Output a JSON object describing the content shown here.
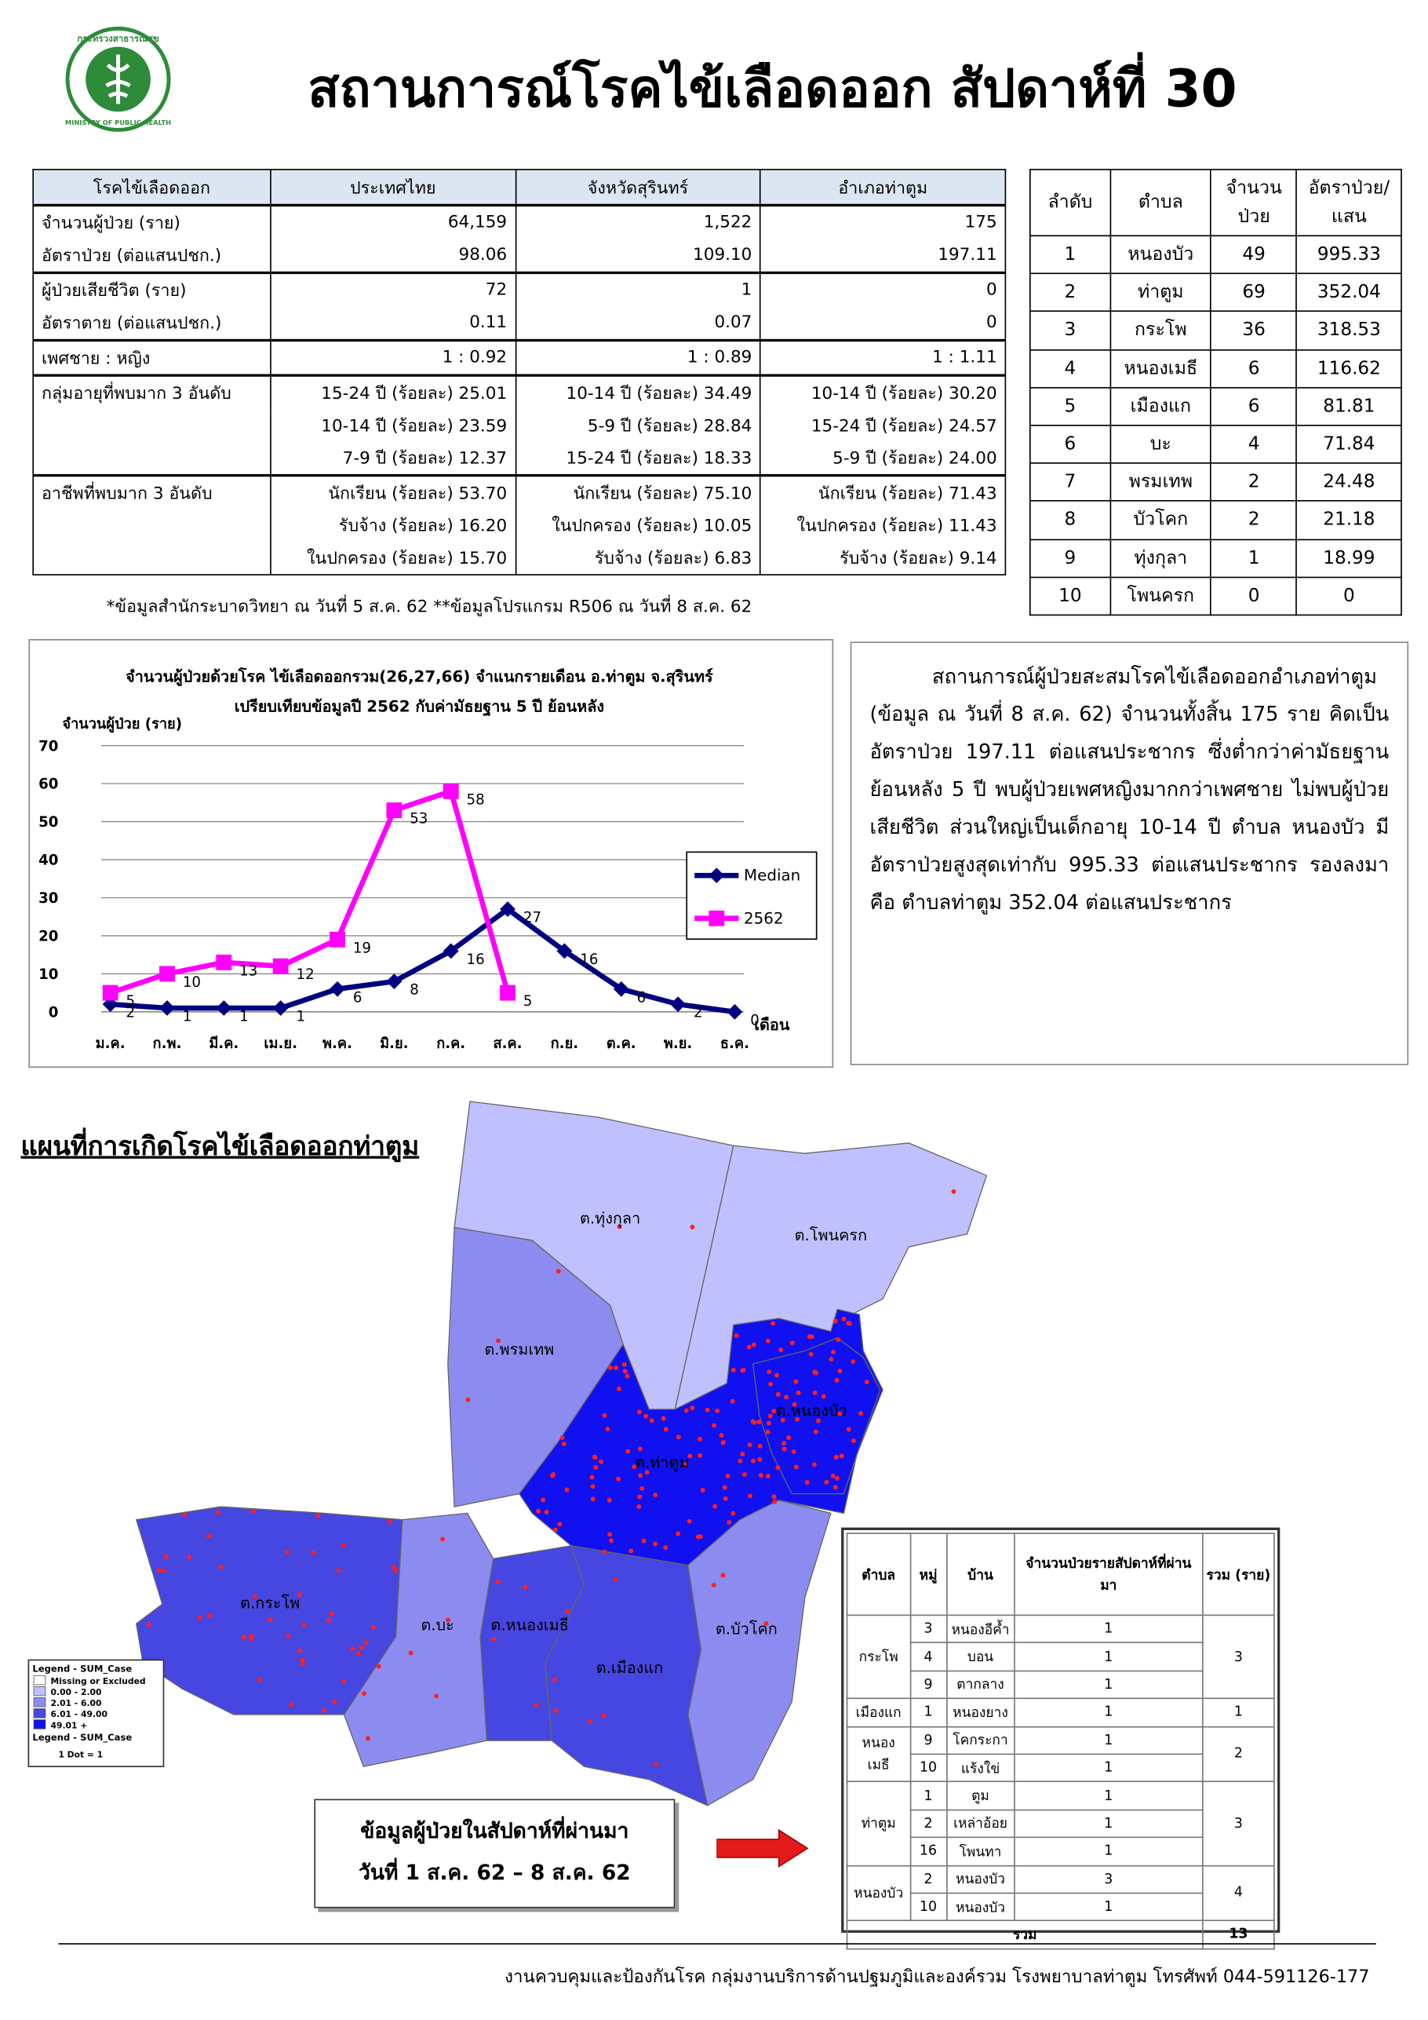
{
  "header": {
    "title": "สถานการณ์โรคไข้เลือดออก สัปดาห์ที่ 30",
    "logo_top": "กระทรวงสาธารณสุข",
    "logo_bottom": "MINISTRY OF PUBLIC HEALTH"
  },
  "summary_table": {
    "headers": [
      "โรคไข้เลือดออก",
      "ประเทศไทย",
      "จังหวัดสุรินทร์",
      "อำเภอท่าตูม"
    ],
    "groups": [
      {
        "labels": [
          "จำนวนผู้ป่วย (ราย)",
          "อัตราป่วย (ต่อแสนปชก.)"
        ],
        "rows": [
          [
            "64,159",
            "1,522",
            "175"
          ],
          [
            "98.06",
            "109.10",
            "197.11"
          ]
        ]
      },
      {
        "labels": [
          "ผู้ป่วยเสียชีวิต (ราย)",
          "อัตราตาย (ต่อแสนปชก.)"
        ],
        "rows": [
          [
            "72",
            "1",
            "0"
          ],
          [
            "0.11",
            "0.07",
            "0"
          ]
        ]
      },
      {
        "labels": [
          "เพศชาย : หญิง"
        ],
        "rows": [
          [
            "1 : 0.92",
            "1 : 0.89",
            "1 : 1.11"
          ]
        ]
      },
      {
        "labels": [
          "กลุ่มอายุที่พบมาก 3 อันดับ"
        ],
        "rows": [
          [
            "15-24 ปี (ร้อยละ) 25.01",
            "10-14 ปี (ร้อยละ) 34.49",
            "10-14 ปี (ร้อยละ) 30.20"
          ],
          [
            "10-14 ปี (ร้อยละ) 23.59",
            "5-9 ปี (ร้อยละ) 28.84",
            "15-24 ปี (ร้อยละ) 24.57"
          ],
          [
            "7-9 ปี (ร้อยละ) 12.37",
            "15-24 ปี (ร้อยละ) 18.33",
            "5-9 ปี (ร้อยละ) 24.00"
          ]
        ]
      },
      {
        "labels": [
          "อาชีพที่พบมาก 3 อันดับ"
        ],
        "rows": [
          [
            "นักเรียน (ร้อยละ) 53.70",
            "นักเรียน (ร้อยละ) 75.10",
            "นักเรียน (ร้อยละ) 71.43"
          ],
          [
            "รับจ้าง (ร้อยละ) 16.20",
            "ในปกครอง (ร้อยละ) 10.05",
            "ในปกครอง (ร้อยละ) 11.43"
          ],
          [
            "ในปกครอง (ร้อยละ) 15.70",
            "รับจ้าง (ร้อยละ) 6.83",
            "รับจ้าง (ร้อยละ) 9.14"
          ]
        ]
      }
    ],
    "footnote": "*ข้อมูลสำนักระบาดวิทยา ณ วันที่ 5 ส.ค. 62 **ข้อมูลโปรแกรม R506 ณ วันที่ 8 ส.ค. 62"
  },
  "rank_table": {
    "headers": [
      [
        "ลำดับ"
      ],
      [
        "ตำบล"
      ],
      [
        "จำนวน",
        "ป่วย"
      ],
      [
        "อัตราป่วย/",
        "แสน"
      ]
    ],
    "rows": [
      [
        "1",
        "หนองบัว",
        "49",
        "995.33"
      ],
      [
        "2",
        "ท่าตูม",
        "69",
        "352.04"
      ],
      [
        "3",
        "กระโพ",
        "36",
        "318.53"
      ],
      [
        "4",
        "หนองเมธี",
        "6",
        "116.62"
      ],
      [
        "5",
        "เมืองแก",
        "6",
        "81.81"
      ],
      [
        "6",
        "บะ",
        "4",
        "71.84"
      ],
      [
        "7",
        "พรมเทพ",
        "2",
        "24.48"
      ],
      [
        "8",
        "บัวโคก",
        "2",
        "21.18"
      ],
      [
        "9",
        "ทุ่งกุลา",
        "1",
        "18.99"
      ],
      [
        "10",
        "โพนครก",
        "0",
        "0"
      ]
    ]
  },
  "chart_data": {
    "type": "line",
    "title": [
      "จำนวนผู้ป่วยด้วยโรค ไข้เลือดออกรวม(26,27,66) จำแนกรายเดือน อ.ท่าตูม จ.สุรินทร์",
      "เปรียบเทียบข้อมูลปี 2562 กับค่ามัธยฐาน 5 ปี ย้อนหลัง"
    ],
    "y_label": "จำนวนผู้ป่วย (ราย)",
    "x_label": "เดือน",
    "categories": [
      "ม.ค.",
      "ก.พ.",
      "มี.ค.",
      "เม.ย.",
      "พ.ค.",
      "มิ.ย.",
      "ก.ค.",
      "ส.ค.",
      "ก.ย.",
      "ต.ค.",
      "พ.ย.",
      "ธ.ค."
    ],
    "series": [
      {
        "name": "Median",
        "color": "#000080",
        "marker": "diamond",
        "values": [
          2,
          1,
          1,
          1,
          6,
          8,
          16,
          27,
          16,
          6,
          2,
          0
        ]
      },
      {
        "name": "2562",
        "color": "#ff00ff",
        "marker": "square",
        "values": [
          5,
          10,
          13,
          12,
          19,
          53,
          58,
          5,
          null,
          null,
          null,
          null
        ]
      }
    ],
    "ylim": [
      0,
      70
    ],
    "yticks": [
      0,
      10,
      20,
      30,
      40,
      50,
      60,
      70
    ],
    "grid": true,
    "legend": "right"
  },
  "summary_text": "สถานการณ์ผู้ป่วยสะสมโรคไข้เลือดออกอำเภอท่าตูม (ข้อมูล ณ วันที่ 8 ส.ค. 62) จำนวนทั้งสิ้น 175 ราย คิดเป็นอัตราป่วย 197.11 ต่อแสนประชากร ซึ่งต่ำกว่าค่ามัธยฐานย้อนหลัง 5 ปี พบผู้ป่วยเพศหญิงมากกว่าเพศชาย ไม่พบผู้ป่วยเสียชีวิต ส่วนใหญ่เป็นเด็กอายุ 10-14 ปี ตำบล หนองบัว มีอัตราป่วยสูงสุดเท่ากับ 995.33 ต่อแสนประชากร รองลงมาคือ ตำบลท่าตูม 352.04 ต่อแสนประชากร",
  "map": {
    "title": "แผนที่การเกิดโรคไข้เลือดออกท่าตูม",
    "labels": [
      "ต.ทุ่งกุลา",
      "ต.โพนครก",
      "ต.พรมเทพ",
      "ต.หนองบัว",
      "ต.ท่าตูม",
      "ต.กระโพ",
      "ต.บะ",
      "ต.หนองเมธี",
      "ต.เมืองแก",
      "ต.บัวโคก"
    ],
    "legend": {
      "title": "Legend - SUM_Case",
      "items": [
        {
          "label": "Missing or Excluded",
          "color": "#ffffff"
        },
        {
          "label": "0.00 - 2.00",
          "color": "#c0c0ff"
        },
        {
          "label": "2.01 - 6.00",
          "color": "#8c8cf0"
        },
        {
          "label": "6.01 - 49.00",
          "color": "#4646e0"
        },
        {
          "label": "49.01 +",
          "color": "#1010f0"
        }
      ],
      "dot_title": "Legend - SUM_Case",
      "dot_label": "1 Dot = 1"
    },
    "note": [
      "ข้อมูลผู้ป่วยในสัปดาห์ที่ผ่านมา",
      "วันที่ 1 ส.ค. 62 – 8 ส.ค. 62"
    ]
  },
  "weekly_table": {
    "headers": [
      "ตำบล",
      "หมู่",
      "บ้าน",
      "จำนวนป่วยรายสัปดาห์ที่ผ่านมา",
      "รวม (ราย)"
    ],
    "groups": [
      {
        "tambon": [
          "กระโพ"
        ],
        "total": "3",
        "rows": [
          [
            "3",
            "หนองอีค้ำ",
            "1"
          ],
          [
            "4",
            "บอน",
            "1"
          ],
          [
            "9",
            "ตากลาง",
            "1"
          ]
        ]
      },
      {
        "tambon": [
          "เมืองแก"
        ],
        "total": "1",
        "rows": [
          [
            "1",
            "หนองยาง",
            "1"
          ]
        ]
      },
      {
        "tambon": [
          "หนอง",
          "เมธี"
        ],
        "total": "2",
        "rows": [
          [
            "9",
            "โคกระกา",
            "1"
          ],
          [
            "10",
            "แร้งใข่",
            "1"
          ]
        ]
      },
      {
        "tambon": [
          "ท่าตูม"
        ],
        "total": "3",
        "rows": [
          [
            "1",
            "ตูม",
            "1"
          ],
          [
            "2",
            "เหล่าอ้อย",
            "1"
          ],
          [
            "16",
            "โพนทา",
            "1"
          ]
        ]
      },
      {
        "tambon": [
          "หนองบัว"
        ],
        "total": "4",
        "rows": [
          [
            "2",
            "หนองบัว",
            "3"
          ],
          [
            "10",
            "หนองบัว",
            "1"
          ]
        ]
      }
    ],
    "total_label": "รวม",
    "total": "13"
  },
  "footer": "งานควบคุมและป้องกันโรค กลุ่มงานบริการด้านปฐมภูมิและองค์รวม โรงพยาบาลท่าตูม โทรศัพท์ 044-591126-177"
}
